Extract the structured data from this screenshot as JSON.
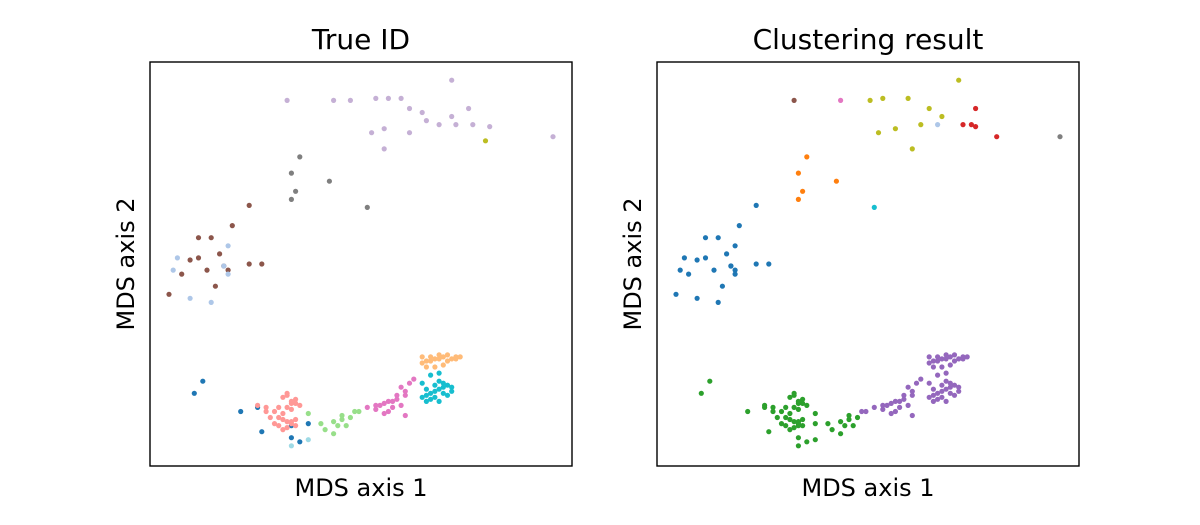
{
  "chart_data": [
    {
      "type": "scatter",
      "title": "True ID",
      "xlabel": "MDS axis 1",
      "ylabel": "MDS axis 2",
      "xlim": [
        0,
        100
      ],
      "ylim": [
        0,
        100
      ],
      "xticks": false,
      "yticks": false,
      "legend": "none",
      "series": [
        {
          "color": "#c5b0d5",
          "x": [
            32.5,
            43.5,
            47.5,
            53.5,
            56.5,
            59.5,
            61.5,
            64.5,
            65.5,
            71.5,
            72.5,
            75.5,
            71.5,
            55.5,
            52.5,
            61.5,
            55.5,
            76.5,
            68.5,
            80.5,
            95.5
          ],
          "y": [
            90.5,
            90.5,
            90.5,
            91,
            91,
            91,
            88.5,
            87.5,
            85.5,
            86.5,
            84.5,
            88.5,
            95.5,
            83.5,
            82.5,
            82.5,
            78.5,
            84.5,
            84.5,
            84,
            81.5
          ]
        },
        {
          "color": "#7f7f7f",
          "x": [
            35.5,
            33.5,
            34.5,
            42.5,
            33.5,
            51.5
          ],
          "y": [
            76.5,
            72.5,
            68,
            70.5,
            66,
            64
          ]
        },
        {
          "color": "#bcbd22",
          "x": [
            79.5
          ],
          "y": [
            80.5
          ]
        },
        {
          "color": "#8c564b",
          "x": [
            23.5,
            19.5,
            14.5,
            11.5,
            11.5,
            16.5,
            17.5,
            13.5,
            18.5,
            15.5,
            4.5,
            7.5,
            9.5,
            23.5,
            26.5
          ],
          "y": [
            64.5,
            59.5,
            56.5,
            56.5,
            51.5,
            52.5,
            49.5,
            48.5,
            48.5,
            44.5,
            42.5,
            47.5,
            51,
            50,
            50
          ]
        },
        {
          "color": "#aec7e8",
          "x": [
            6.5,
            5.5,
            18.5,
            17.5,
            18.5,
            9.5,
            14.5
          ],
          "y": [
            51.5,
            48.5,
            54.5,
            49.5,
            47.5,
            41.5,
            40.5
          ]
        },
        {
          "color": "#1f77b4",
          "x": [
            10.5,
            12.5,
            21.5,
            25.5,
            26.5,
            33.5,
            33.5,
            37.5,
            35.5
          ],
          "y": [
            18,
            21,
            13.5,
            14.5,
            8.5,
            10,
            7,
            10.5,
            6
          ]
        },
        {
          "color": "#ff9896",
          "x": [
            25.5,
            27.5,
            30.5,
            32.5,
            33.5,
            34.5,
            27.5,
            29.5,
            31.5,
            33.5,
            35.5,
            28.5,
            30.5,
            31.5,
            32.5,
            33.5,
            34.5,
            29.5,
            30.5,
            31.5,
            32.5,
            33.5,
            34.5,
            31.5,
            32.5,
            33.5,
            32.5,
            34.5
          ],
          "y": [
            15,
            14.5,
            14.5,
            14.5,
            15.5,
            15.5,
            13.5,
            13.5,
            13,
            14,
            15,
            12,
            12,
            11.5,
            11,
            10.5,
            10,
            10.5,
            10,
            9,
            9.5,
            11,
            11.5,
            17,
            17.5,
            16,
            18,
            16.5
          ]
        },
        {
          "color": "#98df8a",
          "x": [
            37.5,
            40.5,
            43.5,
            45.5,
            47.5,
            49.5,
            41.5,
            44.5,
            45.5,
            43.5,
            46.5,
            48.5
          ],
          "y": [
            13,
            10.5,
            11,
            12.5,
            12,
            13.5,
            9,
            10,
            11.5,
            8,
            10,
            13.5
          ]
        },
        {
          "color": "#9edae5",
          "x": [
            33.5,
            37.5
          ],
          "y": [
            5,
            6.5
          ]
        },
        {
          "color": "#e377c2",
          "x": [
            51.5,
            53.5,
            54.5,
            55.5,
            56.5,
            57.5,
            58.5,
            59.5,
            60.5,
            56.5,
            57.5,
            58.5,
            59.5,
            60.5,
            61.5,
            62.5,
            53.5,
            55.5,
            60.5
          ],
          "y": [
            14.5,
            14,
            15,
            15.5,
            16,
            16,
            16.5,
            15,
            17.5,
            13.5,
            14.5,
            17.5,
            19.5,
            18.5,
            20.5,
            21.5,
            15,
            13,
            12.5
          ]
        },
        {
          "color": "#17becf",
          "x": [
            64.5,
            65.5,
            66.5,
            67.5,
            68.5,
            69.5,
            70.5,
            71.5,
            65.5,
            66.5,
            67.5,
            68.5,
            69.5,
            70.5,
            71.5,
            65.5,
            67.5,
            68.5,
            66.5,
            68.5,
            69.5,
            64.5
          ],
          "y": [
            17,
            17.5,
            18,
            18.5,
            19,
            19.5,
            20,
            19.5,
            16,
            16.5,
            17,
            16,
            18,
            17.5,
            18.5,
            19,
            20,
            21,
            22.5,
            23,
            20.5,
            20.5
          ]
        },
        {
          "color": "#ffbb78",
          "x": [
            64.5,
            65.5,
            66.5,
            67.5,
            68.5,
            69.5,
            70.5,
            71.5,
            72.5,
            73.5,
            64.5,
            66.5,
            68.5,
            70.5,
            72.5,
            65.5,
            67.5,
            69.5
          ],
          "y": [
            25.5,
            26,
            26,
            26.5,
            26.5,
            27,
            26,
            26.5,
            27,
            27,
            27,
            27,
            27.5,
            27.5,
            26.5,
            24.5,
            24.5,
            25
          ]
        }
      ]
    },
    {
      "type": "scatter",
      "title": "Clustering result",
      "xlabel": "MDS axis 1",
      "ylabel": "MDS axis 2",
      "xlim": [
        0,
        100
      ],
      "ylim": [
        0,
        100
      ],
      "xticks": false,
      "yticks": false,
      "legend": "none",
      "series": [
        {
          "color": "#8c564b",
          "x": [
            32.5
          ],
          "y": [
            90.5
          ]
        },
        {
          "color": "#e377c2",
          "x": [
            43.5
          ],
          "y": [
            90.5
          ]
        },
        {
          "color": "#bcbd22",
          "x": [
            50.5,
            53.5,
            59.5,
            64.5,
            67.5,
            71.5,
            62.5,
            56.5,
            52.5,
            60.5
          ],
          "y": [
            90.5,
            91,
            91,
            88.5,
            86.5,
            95.5,
            84.5,
            83.5,
            82.5,
            78.5
          ]
        },
        {
          "color": "#aec7e8",
          "x": [
            66.5
          ],
          "y": [
            84.5
          ]
        },
        {
          "color": "#d62728",
          "x": [
            75.5,
            72.5,
            74.5,
            75.5,
            80.5
          ],
          "y": [
            88.5,
            84.5,
            84.5,
            84,
            81.5
          ]
        },
        {
          "color": "#7f7f7f",
          "x": [
            95.5
          ],
          "y": [
            81.5
          ]
        },
        {
          "color": "#ff7f0e",
          "x": [
            35.5,
            33.5,
            34.5,
            42.5,
            33.5
          ],
          "y": [
            76.5,
            72.5,
            68,
            70.5,
            66
          ]
        },
        {
          "color": "#17becf",
          "x": [
            51.5
          ],
          "y": [
            64
          ]
        },
        {
          "color": "#1f77b4",
          "x": [
            23.5,
            19.5,
            14.5,
            11.5,
            11.5,
            16.5,
            17.5,
            13.5,
            18.5,
            15.5,
            4.5,
            7.5,
            9.5,
            23.5,
            26.5,
            6.5,
            5.5,
            18.5,
            17.5,
            18.5,
            9.5,
            14.5
          ],
          "y": [
            64.5,
            59.5,
            56.5,
            56.5,
            51.5,
            52.5,
            49.5,
            48.5,
            48.5,
            44.5,
            42.5,
            47.5,
            51,
            50,
            50,
            51.5,
            48.5,
            54.5,
            49.5,
            47.5,
            41.5,
            40.5
          ]
        },
        {
          "color": "#2ca02c",
          "x": [
            10.5,
            12.5,
            21.5,
            25.5,
            26.5,
            33.5,
            33.5,
            37.5,
            35.5,
            25.5,
            27.5,
            30.5,
            32.5,
            33.5,
            34.5,
            27.5,
            29.5,
            31.5,
            33.5,
            35.5,
            28.5,
            30.5,
            31.5,
            32.5,
            33.5,
            34.5,
            29.5,
            30.5,
            31.5,
            32.5,
            33.5,
            34.5,
            31.5,
            32.5,
            33.5,
            32.5,
            34.5,
            37.5,
            40.5,
            43.5,
            45.5,
            47.5,
            41.5,
            44.5,
            45.5,
            43.5,
            46.5,
            33.5,
            37.5
          ],
          "y": [
            18,
            21,
            13.5,
            14.5,
            8.5,
            10,
            7,
            10.5,
            6,
            15,
            14.5,
            14.5,
            14.5,
            15.5,
            15.5,
            13.5,
            13.5,
            13,
            14,
            15,
            12,
            12,
            11.5,
            11,
            10.5,
            10,
            10.5,
            10,
            9,
            9.5,
            11,
            11.5,
            17,
            17.5,
            16,
            18,
            16.5,
            13,
            10.5,
            11,
            12.5,
            12,
            9,
            10,
            11.5,
            8,
            10,
            5,
            6.5
          ]
        },
        {
          "color": "#9467bd",
          "x": [
            49.5,
            48.5,
            51.5,
            53.5,
            54.5,
            55.5,
            56.5,
            57.5,
            58.5,
            59.5,
            60.5,
            56.5,
            57.5,
            58.5,
            59.5,
            60.5,
            61.5,
            62.5,
            53.5,
            55.5,
            60.5,
            64.5,
            65.5,
            66.5,
            67.5,
            68.5,
            69.5,
            70.5,
            71.5,
            65.5,
            66.5,
            67.5,
            68.5,
            69.5,
            70.5,
            71.5,
            65.5,
            67.5,
            68.5,
            66.5,
            68.5,
            69.5,
            64.5,
            64.5,
            65.5,
            66.5,
            67.5,
            68.5,
            69.5,
            70.5,
            71.5,
            72.5,
            73.5,
            64.5,
            66.5,
            68.5,
            70.5,
            72.5,
            65.5,
            67.5,
            69.5
          ],
          "y": [
            13.5,
            13.5,
            14.5,
            14,
            15,
            15.5,
            16,
            16,
            16.5,
            15,
            17.5,
            13.5,
            14.5,
            17.5,
            19.5,
            18.5,
            20.5,
            21.5,
            15,
            13,
            12.5,
            17,
            17.5,
            18,
            18.5,
            19,
            19.5,
            20,
            19.5,
            16,
            16.5,
            17,
            16,
            18,
            17.5,
            18.5,
            19,
            20,
            21,
            22.5,
            23,
            20.5,
            20.5,
            25.5,
            26,
            26,
            26.5,
            26.5,
            27,
            26,
            26.5,
            27,
            27,
            27,
            27,
            27.5,
            27.5,
            26.5,
            24.5,
            24.5,
            25
          ]
        }
      ]
    }
  ]
}
